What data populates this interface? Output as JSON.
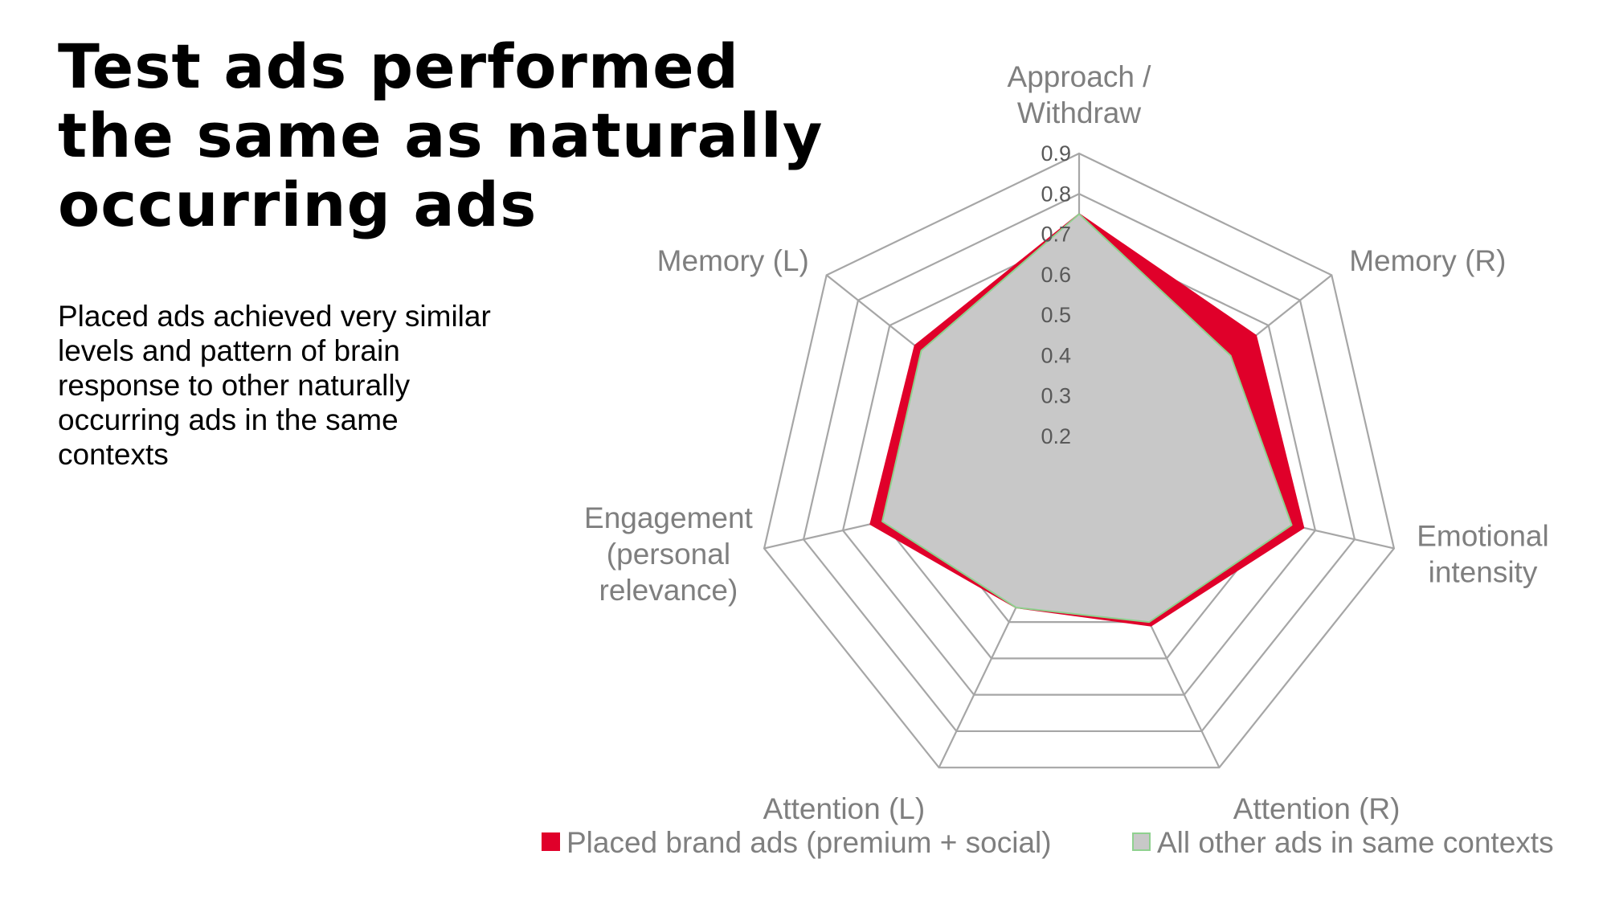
{
  "slide": {
    "title_lines": [
      "Test ads performed",
      "the same as naturally",
      "occurring ads"
    ],
    "subtitle_lines": [
      "Placed ads achieved very similar",
      "levels and pattern of brain",
      "response to other naturally",
      "occurring ads in the same",
      "contexts"
    ]
  },
  "chart_data": {
    "type": "radar",
    "title": "",
    "axes": [
      [
        "Approach /",
        "Withdraw"
      ],
      [
        "Memory (R)"
      ],
      [
        "Emotional",
        "intensity"
      ],
      [
        "Attention (R)"
      ],
      [
        "Attention (L)"
      ],
      [
        "Engagement",
        "(personal",
        "relevance)"
      ],
      [
        "Memory (L)"
      ]
    ],
    "r_range": [
      0.1,
      0.9
    ],
    "ticks": [
      0.2,
      0.3,
      0.4,
      0.5,
      0.6,
      0.7,
      0.8,
      0.9
    ],
    "tick_labels": [
      "0.2",
      "0.3",
      "0.4",
      "0.5",
      "0.6",
      "0.7",
      "0.8",
      "0.9"
    ],
    "gridlines": true,
    "series": [
      {
        "name": "Placed brand ads (premium + social)",
        "color": "#e0002a",
        "values": [
          0.75,
          0.66,
          0.67,
          0.51,
          0.46,
          0.63,
          0.62
        ]
      },
      {
        "name": "All other ads in same contexts",
        "color": "#c8c8c8",
        "stroke": "#8fd18f",
        "values": [
          0.75,
          0.58,
          0.64,
          0.5,
          0.46,
          0.6,
          0.6
        ]
      }
    ],
    "legend_position": "bottom"
  }
}
